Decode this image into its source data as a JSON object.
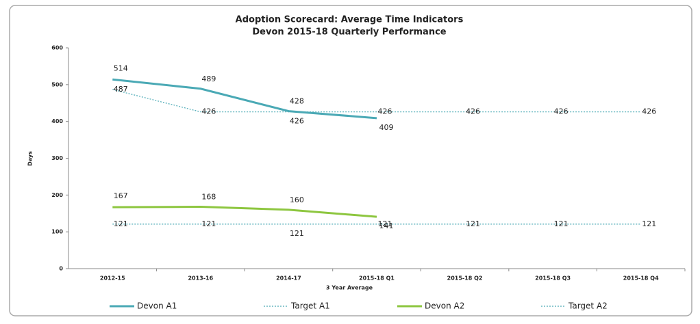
{
  "chart_data": {
    "type": "line",
    "title": "Adoption Scorecard: Average Time Indicators",
    "subtitle": "Devon 2015-18 Quarterly Performance",
    "x_label": "3 Year Average",
    "y_label": "Days",
    "categories": [
      "2012-15",
      "2013-16",
      "2014-17",
      "2015-18 Q1",
      "2015-18 Q2",
      "2015-18 Q3",
      "2015-18 Q4"
    ],
    "ylim": [
      0,
      600
    ],
    "yticks": [
      0,
      100,
      200,
      300,
      400,
      500,
      600
    ],
    "legend": "bottom",
    "series": [
      {
        "name": "Devon A1",
        "color": "#4aa9b5",
        "dash": "solid",
        "values": [
          514,
          489,
          428,
          409,
          null,
          null,
          null
        ]
      },
      {
        "name": "Target A1",
        "color": "#4aa9b5",
        "dash": "dotted",
        "values": [
          487,
          426,
          426,
          426,
          426,
          426,
          426
        ]
      },
      {
        "name": "Devon A2",
        "color": "#8dc63f",
        "dash": "solid",
        "values": [
          167,
          168,
          160,
          141,
          null,
          null,
          null
        ]
      },
      {
        "name": "Target A2",
        "color": "#4aa9b5",
        "dash": "dotted",
        "values": [
          121,
          121,
          121,
          121,
          121,
          121,
          121
        ]
      }
    ]
  }
}
